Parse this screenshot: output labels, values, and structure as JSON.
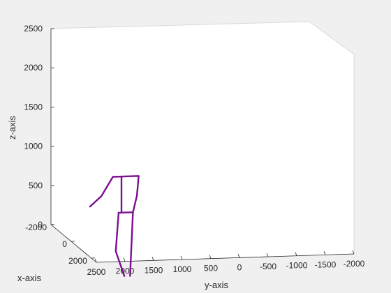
{
  "chart_data": {
    "type": "line",
    "title": "",
    "xlabel": "x-axis",
    "ylabel": "y-axis",
    "zlabel": "z-axis",
    "xlim": [
      -2000,
      2500
    ],
    "ylim": [
      -2000,
      2500
    ],
    "zlim": [
      0,
      2500
    ],
    "x_ticks": [
      "-2000",
      "0",
      "2000"
    ],
    "y_ticks": [
      "2500",
      "2000",
      "1500",
      "1000",
      "500",
      "0",
      "-500",
      "-1000",
      "-1500",
      "-2000"
    ],
    "z_ticks": [
      "0",
      "500",
      "1000",
      "1500",
      "2000",
      "2500"
    ],
    "grid": false,
    "series": [
      {
        "color": "#7b0f8f",
        "segments": [
          {
            "points": [
              [
                1300,
                2400,
                580
              ],
              [
                1300,
                2200,
                710
              ],
              [
                1300,
                2000,
                950
              ],
              [
                1300,
                1750,
                950
              ]
            ]
          },
          {
            "points": [
              [
                1300,
                1750,
                950
              ],
              [
                1300,
                1550,
                950
              ],
              [
                1300,
                1580,
                700
              ],
              [
                1300,
                1650,
                490
              ]
            ]
          },
          {
            "points": [
              [
                1300,
                1850,
                950
              ],
              [
                1300,
                1850,
                490
              ]
            ]
          },
          {
            "points": [
              [
                1300,
                1900,
                490
              ],
              [
                1300,
                1650,
                490
              ]
            ]
          },
          {
            "points": [
              [
                1300,
                1900,
                490
              ],
              [
                1300,
                1950,
                0
              ],
              [
                1300,
                1800,
                -320
              ]
            ]
          },
          {
            "points": [
              [
                1300,
                1650,
                490
              ],
              [
                1300,
                1700,
                -320
              ]
            ]
          }
        ]
      }
    ]
  }
}
